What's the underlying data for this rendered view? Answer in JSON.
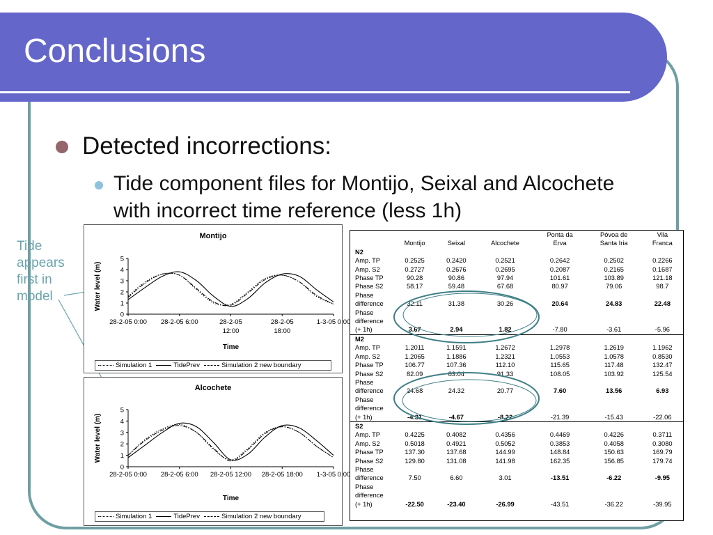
{
  "slide": {
    "title": "Conclusions",
    "bullet1": "Detected incorrections:",
    "bullet2": "Tide component files for Montijo, Seixal and Alcochete with incorrect time reference (less 1h)",
    "annotation": "Tide appears first in model",
    "colors": {
      "title_bar": "#6466c9",
      "frame": "#6f9fa3",
      "annotation": "#6aa3ad",
      "bullet1": "#94656b",
      "bullet2": "#8fc2dd",
      "ellipse": "#3f7f86"
    }
  },
  "chart_data": [
    {
      "type": "line",
      "title": "Montijo",
      "xlabel": "Time",
      "ylabel": "Water level (m)",
      "ylim": [
        0,
        5
      ],
      "yticks": [
        "0",
        "1",
        "2",
        "3",
        "4",
        "5"
      ],
      "xticks": [
        "28-2-05 0:00",
        "28-2-05 6:00",
        "28-2-05\n12:00",
        "28-2-05\n18:00",
        "1-3-05 0:00"
      ],
      "x_hours": [
        0,
        2,
        4,
        6,
        8,
        10,
        12,
        14,
        16,
        18,
        20,
        22,
        24
      ],
      "series": [
        {
          "name": "Simulation 1",
          "style": "dotted",
          "values": [
            1.6,
            2.9,
            3.6,
            3.5,
            2.2,
            1.0,
            0.9,
            2.0,
            3.2,
            3.5,
            2.9,
            1.6,
            0.9
          ]
        },
        {
          "name": "TidePrev",
          "style": "solid",
          "values": [
            1.3,
            2.4,
            3.4,
            3.8,
            3.0,
            1.6,
            0.7,
            1.4,
            2.8,
            3.6,
            3.4,
            2.2,
            1.1
          ]
        },
        {
          "name": "Simulation 2 new boundary",
          "style": "dashdot",
          "values": [
            1.5,
            2.8,
            3.6,
            3.5,
            2.3,
            1.1,
            0.8,
            1.9,
            3.1,
            3.5,
            2.9,
            1.7,
            0.9
          ]
        }
      ],
      "legend": [
        "Simulation 1",
        "TidePrev",
        "Simulation 2 new boundary"
      ]
    },
    {
      "type": "line",
      "title": "Alcochete",
      "xlabel": "Time",
      "ylabel": "Water level (m)",
      "ylim": [
        0,
        5
      ],
      "yticks": [
        "0",
        "1",
        "2",
        "3",
        "4",
        "5"
      ],
      "xticks": [
        "28-2-05 0:00",
        "28-2-05 6:00",
        "28-2-05 12:00",
        "28-2-05 18:00",
        "1-3-05 0:00"
      ],
      "x_hours": [
        0,
        2,
        4,
        6,
        8,
        10,
        12,
        14,
        16,
        18,
        20,
        22,
        24
      ],
      "series": [
        {
          "name": "Simulation 1",
          "style": "dotted",
          "values": [
            1.0,
            2.4,
            3.3,
            3.7,
            3.0,
            1.5,
            0.6,
            1.6,
            3.0,
            3.5,
            3.0,
            1.8,
            0.8
          ]
        },
        {
          "name": "TidePrev",
          "style": "solid",
          "values": [
            0.8,
            1.9,
            3.0,
            3.8,
            3.5,
            2.1,
            0.6,
            1.1,
            2.6,
            3.6,
            3.4,
            2.3,
            1.0
          ]
        },
        {
          "name": "Simulation 2 new boundary",
          "style": "dashdot",
          "values": [
            1.0,
            2.3,
            3.2,
            3.6,
            3.0,
            1.6,
            0.5,
            1.5,
            2.9,
            3.5,
            3.0,
            1.8,
            0.8
          ]
        }
      ],
      "legend": [
        "Simulation 1",
        "TidePrev",
        "Simulation 2 new boundary"
      ]
    }
  ],
  "table": {
    "headers": [
      "",
      "Montijo",
      "Seixal",
      "Alcochete",
      "Ponta da\nErva",
      "Póvoa de\nSanta Iria",
      "Vila\nFranca"
    ],
    "groups": [
      {
        "name": "N2",
        "rows": [
          {
            "label": "Amp. TP",
            "values": [
              "0.2525",
              "0.2420",
              "0.2521",
              "0.2642",
              "0.2502",
              "0.2266"
            ],
            "bold": []
          },
          {
            "label": "Amp. S2",
            "values": [
              "0.2727",
              "0.2676",
              "0.2695",
              "0.2087",
              "0.2165",
              "0.1687"
            ],
            "bold": []
          },
          {
            "label": "Phase TP",
            "values": [
              "90.28",
              "90.86",
              "97.94",
              "101.61",
              "103.89",
              "121.18"
            ],
            "bold": []
          },
          {
            "label": "Phase S2",
            "values": [
              "58.17",
              "59.48",
              "67.68",
              "80.97",
              "79.06",
              "98.7"
            ],
            "bold": []
          },
          {
            "label": "Phase\ndifference",
            "values": [
              "32.11",
              "31.38",
              "30.26",
              "20.64",
              "24.83",
              "22.48"
            ],
            "bold": [
              3,
              4,
              5
            ]
          },
          {
            "label": "Phase\ndifference\n(+ 1h)",
            "values": [
              "3.67",
              "2.94",
              "1.82",
              "-7.80",
              "-3.61",
              "-5.96"
            ],
            "bold": [
              0,
              1,
              2
            ]
          }
        ]
      },
      {
        "name": "M2",
        "rows": [
          {
            "label": "Amp. TP",
            "values": [
              "1.2011",
              "1.1591",
              "1.2672",
              "1.2978",
              "1.2619",
              "1.1962"
            ],
            "bold": []
          },
          {
            "label": "Amp. S2",
            "values": [
              "1.2065",
              "1.1886",
              "1.2321",
              "1.0553",
              "1.0578",
              "0.8530"
            ],
            "bold": []
          },
          {
            "label": "Phase TP",
            "values": [
              "106.77",
              "107.36",
              "112.10",
              "115.65",
              "117.48",
              "132.47"
            ],
            "bold": []
          },
          {
            "label": "Phase S2",
            "values": [
              "82.09",
              "83.04",
              "91.33",
              "108.05",
              "103.92",
              "125.54"
            ],
            "bold": []
          },
          {
            "label": "Phase\ndifference",
            "values": [
              "24.68",
              "24.32",
              "20.77",
              "7.60",
              "13.56",
              "6.93"
            ],
            "bold": [
              3,
              4,
              5
            ]
          },
          {
            "label": "Phase\ndifference\n(+ 1h)",
            "values": [
              "-4.31",
              "-4.67",
              "-8.22",
              "-21.39",
              "-15.43",
              "-22.06"
            ],
            "bold": [
              0,
              1,
              2
            ]
          }
        ]
      },
      {
        "name": "S2",
        "rows": [
          {
            "label": "Amp. TP",
            "values": [
              "0.4225",
              "0.4082",
              "0.4356",
              "0.4469",
              "0.4226",
              "0.3711"
            ],
            "bold": []
          },
          {
            "label": "Amp. S2",
            "values": [
              "0.5018",
              "0.4921",
              "0.5052",
              "0.3853",
              "0.4058",
              "0.3080"
            ],
            "bold": []
          },
          {
            "label": "Phase TP",
            "values": [
              "137.30",
              "137.68",
              "144.99",
              "148.84",
              "150.63",
              "169.79"
            ],
            "bold": []
          },
          {
            "label": "Phase S2",
            "values": [
              "129.80",
              "131.08",
              "141.98",
              "162.35",
              "156.85",
              "179.74"
            ],
            "bold": []
          },
          {
            "label": "Phase\ndifference",
            "values": [
              "7.50",
              "6.60",
              "3.01",
              "-13.51",
              "-6.22",
              "-9.95"
            ],
            "bold": [
              3,
              4,
              5
            ]
          },
          {
            "label": "Phase\ndifference\n(+ 1h)",
            "values": [
              "-22.50",
              "-23.40",
              "-26.99",
              "-43.51",
              "-36.22",
              "-39.95"
            ],
            "bold": [
              0,
              1,
              2
            ]
          }
        ]
      }
    ]
  }
}
